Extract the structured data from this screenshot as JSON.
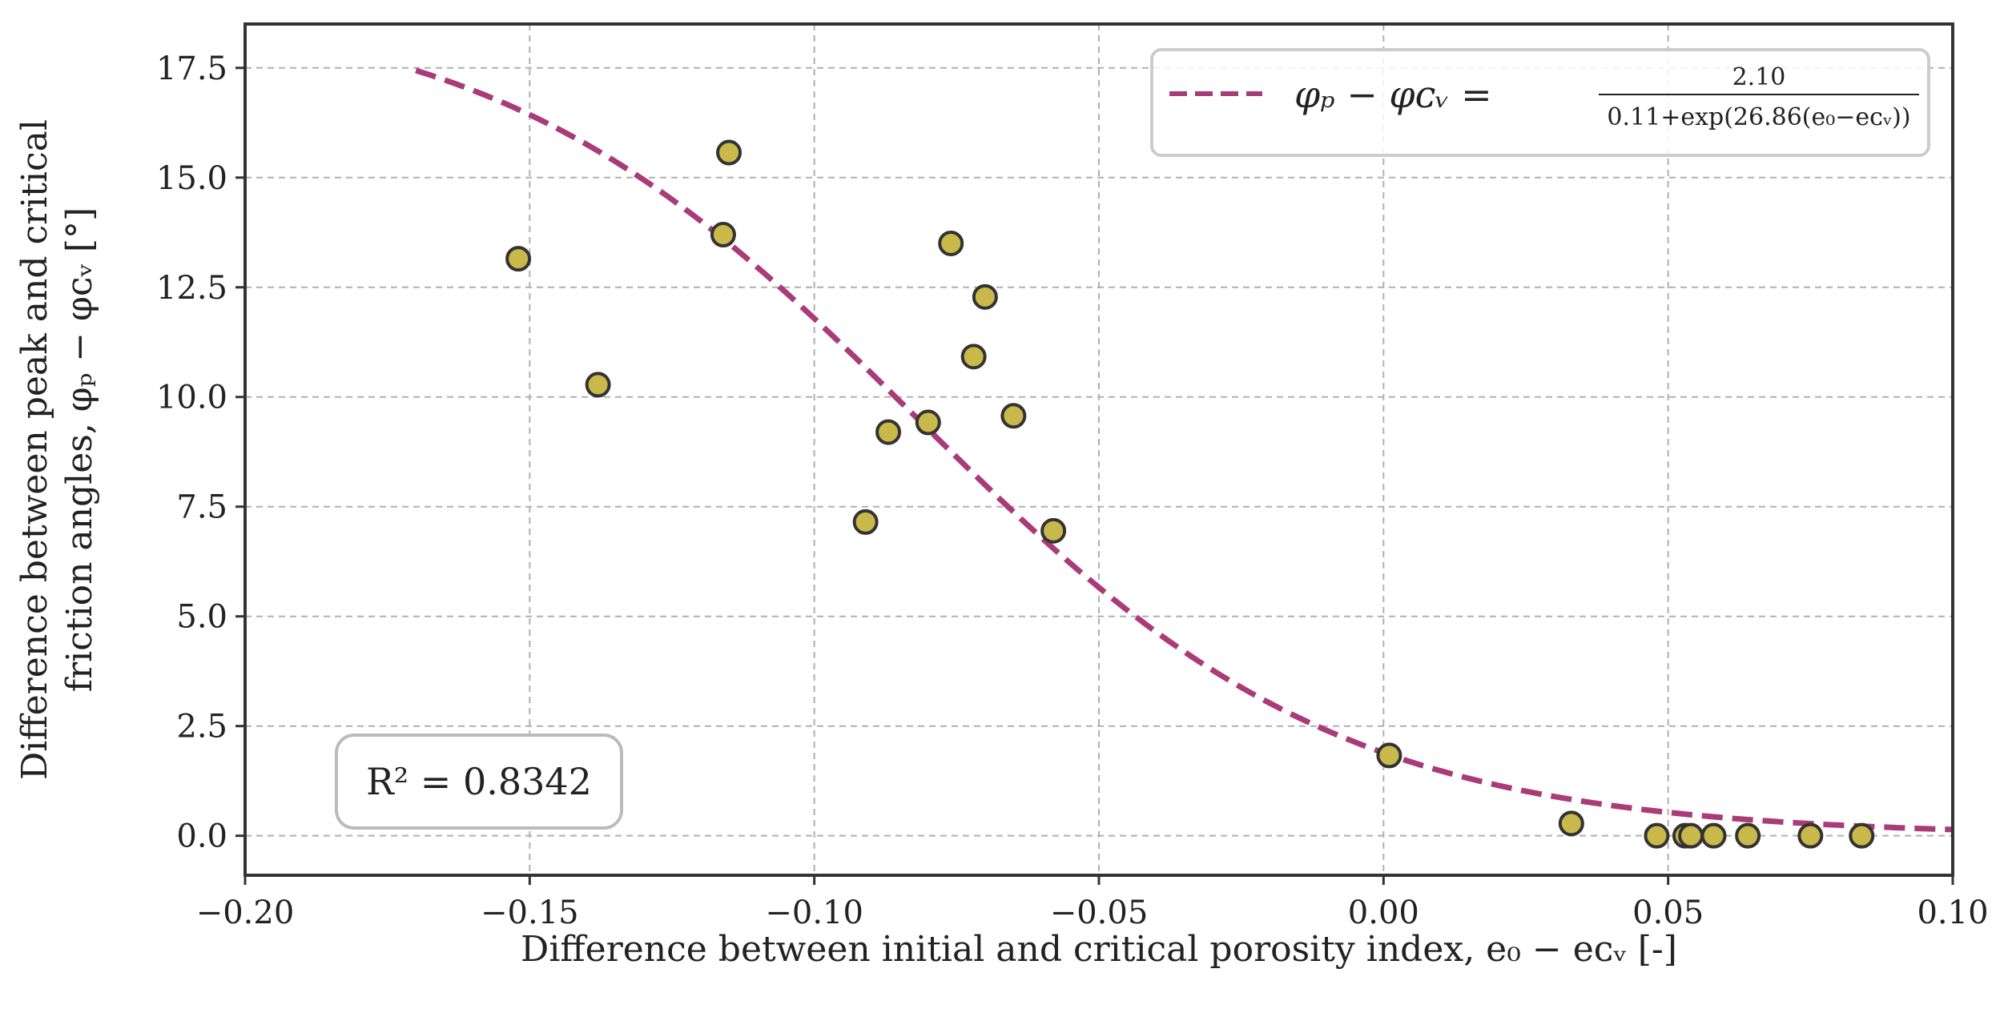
{
  "chart_data": {
    "type": "scatter",
    "xlabel": "Difference between initial and critical porosity index, e₀ − eᴄᵥ [-]",
    "ylabel_line1": "Difference between peak and critical",
    "ylabel_line2": "friction angles, φₚ − φᴄᵥ [°]",
    "xlim": [
      -0.2,
      0.1
    ],
    "ylim": [
      -0.9,
      18.5
    ],
    "x_ticks": [
      -0.2,
      -0.15,
      -0.1,
      -0.05,
      0.0,
      0.05,
      0.1
    ],
    "x_tick_labels": [
      "−0.20",
      "−0.15",
      "−0.10",
      "−0.05",
      "0.00",
      "0.05",
      "0.10"
    ],
    "y_ticks": [
      0.0,
      2.5,
      5.0,
      7.5,
      10.0,
      12.5,
      15.0,
      17.5
    ],
    "y_tick_labels": [
      "0.0",
      "2.5",
      "5.0",
      "7.5",
      "10.0",
      "12.5",
      "15.0",
      "17.5"
    ],
    "grid": true,
    "series": [
      {
        "name": "data",
        "kind": "scatter",
        "color": "#c9b84a",
        "edge_color": "#333333",
        "x": [
          -0.152,
          -0.138,
          -0.115,
          -0.116,
          -0.091,
          -0.087,
          -0.08,
          -0.076,
          -0.072,
          -0.07,
          -0.065,
          -0.058,
          0.001,
          0.033,
          0.048,
          0.053,
          0.054,
          0.058,
          0.064,
          0.075,
          0.084
        ],
        "y": [
          13.15,
          10.28,
          15.57,
          13.7,
          7.15,
          9.2,
          9.42,
          13.5,
          10.92,
          12.28,
          9.57,
          6.95,
          1.83,
          0.28,
          0.0,
          0.0,
          0.0,
          0.0,
          0.0,
          0.0,
          0.0
        ]
      },
      {
        "name": "fit",
        "kind": "line",
        "style": "dashed",
        "color": "#a93c78",
        "formula": {
          "a": 2.1,
          "b": 0.11,
          "c": 26.86
        },
        "x_range": [
          -0.17,
          0.1
        ]
      }
    ],
    "legend": {
      "position": "top-right",
      "lhs": "φₚ − φᴄᵥ =",
      "numerator": "2.10",
      "denominator": "0.11+exp(26.86(e₀−eᴄᵥ))"
    },
    "annotation": {
      "position": "bottom-left",
      "text": "R² = 0.8342"
    }
  }
}
